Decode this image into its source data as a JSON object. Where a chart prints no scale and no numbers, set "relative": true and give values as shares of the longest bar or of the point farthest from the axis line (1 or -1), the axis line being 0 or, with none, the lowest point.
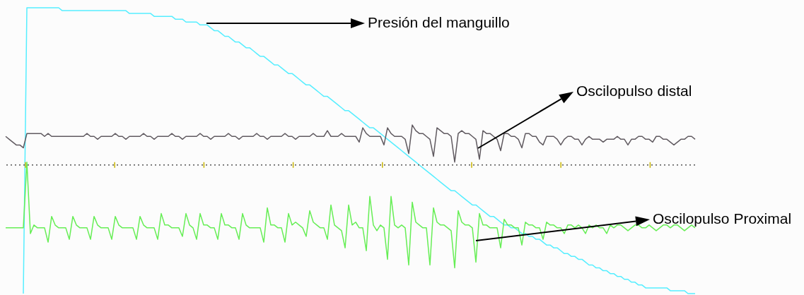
{
  "chart_data": {
    "type": "line",
    "relative": true,
    "categories": [
      null,
      null,
      null,
      null,
      null,
      null,
      null,
      null,
      null,
      null,
      null,
      null,
      null,
      null,
      null,
      null,
      null,
      null,
      null,
      null,
      null,
      null,
      null,
      null,
      null,
      null,
      null,
      null,
      null,
      null,
      null,
      null,
      null,
      null,
      null,
      null,
      null,
      null,
      null,
      null,
      null,
      null,
      null,
      null,
      null,
      null,
      null,
      null,
      null,
      null,
      null,
      null,
      null,
      null,
      null,
      null,
      null,
      null,
      null,
      null,
      null,
      null,
      null,
      null,
      null,
      null,
      null,
      null,
      null,
      null,
      null,
      null,
      null,
      null,
      null,
      null,
      null,
      null,
      null,
      null,
      null,
      null,
      null,
      null,
      null,
      null,
      null,
      null,
      null,
      null,
      null,
      null,
      null,
      null,
      null,
      null,
      null,
      null,
      null,
      null,
      null,
      null,
      null,
      null,
      null,
      null,
      null,
      null,
      null,
      null,
      null,
      null,
      null,
      null,
      null,
      null,
      null,
      null,
      null,
      null,
      null,
      null,
      null,
      null,
      null,
      null,
      null,
      null,
      null,
      null,
      null,
      null,
      null,
      null,
      null,
      null,
      null,
      null,
      null,
      null,
      null,
      null,
      null,
      null,
      null,
      null,
      null,
      null,
      null,
      null,
      null,
      null,
      null,
      null,
      null,
      null,
      null,
      null,
      null,
      null,
      null,
      null,
      null,
      null,
      null,
      null,
      null,
      null,
      null,
      null,
      null,
      null,
      null,
      null,
      null,
      null,
      null,
      null,
      null,
      null,
      null,
      null,
      null,
      null,
      null,
      null,
      null,
      null,
      null,
      null,
      null,
      null,
      null,
      null,
      null,
      null
    ],
    "ref_lines": [
      {
        "axis": "y",
        "value": 0.45,
        "color": "#555555",
        "line_style": "dotted"
      }
    ],
    "annotations": [
      "Presión del manguillo",
      "Oscilopulso distal",
      "Oscilopulso Proximal"
    ],
    "series": [
      {
        "color": "#55eeff",
        "values": [
          null,
          null,
          null,
          null,
          null,
          0,
          1,
          1,
          1,
          1,
          1,
          1,
          1,
          1,
          1,
          1,
          0.99,
          0.99,
          0.99,
          0.99,
          0.99,
          0.99,
          0.99,
          0.99,
          0.99,
          0.99,
          0.99,
          0.99,
          0.99,
          0.99,
          0.99,
          0.99,
          0.99,
          0.99,
          0.99,
          0.98,
          0.98,
          0.98,
          0.98,
          0.98,
          0.98,
          0.98,
          0.97,
          0.97,
          0.97,
          0.97,
          0.97,
          0.97,
          0.96,
          0.96,
          0.96,
          0.95,
          0.95,
          0.95,
          0.95,
          0.94,
          0.94,
          0.94,
          0.93,
          0.92,
          0.92,
          0.91,
          0.9,
          0.9,
          0.89,
          0.88,
          0.88,
          0.87,
          0.86,
          0.86,
          0.85,
          0.84,
          0.83,
          0.83,
          0.82,
          0.81,
          0.8,
          0.8,
          0.79,
          0.78,
          0.77,
          0.77,
          0.76,
          0.75,
          0.74,
          0.73,
          0.73,
          0.72,
          0.71,
          0.7,
          0.69,
          0.69,
          0.68,
          0.67,
          0.66,
          0.65,
          0.64,
          0.64,
          0.63,
          0.62,
          0.61,
          0.6,
          0.59,
          0.58,
          0.58,
          0.57,
          0.56,
          0.55,
          0.54,
          0.53,
          0.52,
          0.51,
          0.5,
          0.49,
          0.48,
          0.47,
          0.46,
          0.45,
          0.44,
          0.43,
          0.42,
          0.41,
          0.4,
          0.39,
          0.38,
          0.37,
          0.36,
          0.36,
          0.35,
          0.34,
          0.33,
          0.32,
          0.31,
          0.31,
          0.3,
          0.29,
          0.28,
          0.27,
          0.27,
          0.26,
          0.25,
          0.24,
          0.24,
          0.23,
          0.23,
          0.22,
          0.21,
          0.21,
          0.2,
          0.2,
          0.19,
          0.19,
          0.18,
          0.17,
          0.17,
          0.16,
          0.16,
          0.15,
          0.14,
          0.14,
          0.13,
          0.13,
          0.12,
          0.12,
          0.11,
          0.1,
          0.1,
          0.09,
          0.09,
          0.08,
          0.08,
          0.07,
          0.07,
          0.06,
          0.06,
          0.05,
          0.05,
          0.04,
          0.04,
          0.03,
          0.03,
          0.02,
          0.02,
          0.02,
          0.02,
          0.02,
          0.02,
          0.02,
          0.01,
          0.01,
          0.01,
          0.01,
          0.01,
          0,
          0,
          0
        ]
      },
      {
        "color": "#605a60",
        "values": [
          0.55,
          0.54,
          0.53,
          0.52,
          0.52,
          0.51,
          0.56,
          0.56,
          0.56,
          0.56,
          0.56,
          0.55,
          0.56,
          0.55,
          0.55,
          0.55,
          0.55,
          0.55,
          0.55,
          0.55,
          0.55,
          0.55,
          0.55,
          0.56,
          0.55,
          0.55,
          0.54,
          0.55,
          0.55,
          0.55,
          0.55,
          0.56,
          0.55,
          0.55,
          0.54,
          0.55,
          0.55,
          0.55,
          0.55,
          0.56,
          0.55,
          0.55,
          0.54,
          0.55,
          0.55,
          0.55,
          0.55,
          0.56,
          0.55,
          0.55,
          0.54,
          0.55,
          0.55,
          0.55,
          0.55,
          0.56,
          0.55,
          0.55,
          0.54,
          0.55,
          0.55,
          0.55,
          0.55,
          0.56,
          0.55,
          0.55,
          0.54,
          0.55,
          0.55,
          0.55,
          0.55,
          0.56,
          0.55,
          0.55,
          0.54,
          0.55,
          0.55,
          0.55,
          0.55,
          0.56,
          0.55,
          0.55,
          0.54,
          0.55,
          0.55,
          0.55,
          0.55,
          0.56,
          0.55,
          0.55,
          0.55,
          0.57,
          0.55,
          0.55,
          0.55,
          0.56,
          0.55,
          0.55,
          0.55,
          0.55,
          0.53,
          0.58,
          0.56,
          0.55,
          0.55,
          0.55,
          0.55,
          0.52,
          0.58,
          0.56,
          0.55,
          0.55,
          0.55,
          0.54,
          0.49,
          0.59,
          0.57,
          0.56,
          0.56,
          0.55,
          0.54,
          0.48,
          0.58,
          0.57,
          0.56,
          0.56,
          0.55,
          0.46,
          0.56,
          0.57,
          0.56,
          0.56,
          0.55,
          0.54,
          0.47,
          0.57,
          0.56,
          0.56,
          0.55,
          0.54,
          0.5,
          0.56,
          0.56,
          0.55,
          0.55,
          0.54,
          0.51,
          0.56,
          0.56,
          0.55,
          0.55,
          0.53,
          0.52,
          0.55,
          0.55,
          0.55,
          0.54,
          0.52,
          0.54,
          0.55,
          0.55,
          0.54,
          0.54,
          0.52,
          0.54,
          0.55,
          0.54,
          0.54,
          0.54,
          0.53,
          0.54,
          0.54,
          0.54,
          0.55,
          0.54,
          0.54,
          0.52,
          0.54,
          0.54,
          0.55,
          0.55,
          0.54,
          0.54,
          0.53,
          0.55,
          0.55,
          0.54,
          0.54,
          0.53,
          0.52,
          0.53,
          0.54,
          0.54,
          0.55,
          0.55,
          0.54
        ]
      },
      {
        "color": "#66ee55",
        "values": [
          0.23,
          0.23,
          0.23,
          0.23,
          0.23,
          0.23,
          0.46,
          0.21,
          0.24,
          0.23,
          0.23,
          0.23,
          0.18,
          0.27,
          0.24,
          0.23,
          0.23,
          0.23,
          0.19,
          0.27,
          0.24,
          0.23,
          0.23,
          0.23,
          0.19,
          0.27,
          0.24,
          0.23,
          0.23,
          0.23,
          0.19,
          0.27,
          0.24,
          0.23,
          0.23,
          0.23,
          0.23,
          0.19,
          0.27,
          0.24,
          0.23,
          0.23,
          0.23,
          0.19,
          0.28,
          0.24,
          0.24,
          0.23,
          0.23,
          0.23,
          0.2,
          0.28,
          0.24,
          0.23,
          0.19,
          0.28,
          0.24,
          0.24,
          0.23,
          0.23,
          0.19,
          0.28,
          0.24,
          0.24,
          0.23,
          0.23,
          0.19,
          0.28,
          0.24,
          0.23,
          0.23,
          0.23,
          0.23,
          0.18,
          0.3,
          0.24,
          0.24,
          0.23,
          0.23,
          0.18,
          0.28,
          0.24,
          0.25,
          0.24,
          0.23,
          0.2,
          0.29,
          0.25,
          0.24,
          0.23,
          0.23,
          0.19,
          0.31,
          0.24,
          0.23,
          0.22,
          0.16,
          0.31,
          0.24,
          0.25,
          0.23,
          0.23,
          0.15,
          0.34,
          0.24,
          0.22,
          0.24,
          0.23,
          0.12,
          0.34,
          0.24,
          0.23,
          0.24,
          0.23,
          0.1,
          0.32,
          0.25,
          0.24,
          0.23,
          0.23,
          0.1,
          0.3,
          0.25,
          0.24,
          0.24,
          0.23,
          0.22,
          0.09,
          0.29,
          0.25,
          0.24,
          0.24,
          0.23,
          0.11,
          0.28,
          0.24,
          0.24,
          0.23,
          0.23,
          0.23,
          0.16,
          0.26,
          0.24,
          0.24,
          0.23,
          0.23,
          0.17,
          0.25,
          0.24,
          0.24,
          0.23,
          0.23,
          0.19,
          0.25,
          0.24,
          0.24,
          0.23,
          0.23,
          0.21,
          0.24,
          0.24,
          0.23,
          0.24,
          0.23,
          0.21,
          0.24,
          0.23,
          0.24,
          0.23,
          0.23,
          0.21,
          0.24,
          0.23,
          0.24,
          0.24,
          0.23,
          0.22,
          0.23,
          0.24,
          0.24,
          0.23,
          0.23,
          0.24,
          0.23,
          0.22,
          0.23,
          0.24,
          0.24,
          0.23,
          0.24,
          0.24,
          0.23,
          0.22,
          0.23,
          0.24,
          0.23
        ]
      }
    ]
  }
}
